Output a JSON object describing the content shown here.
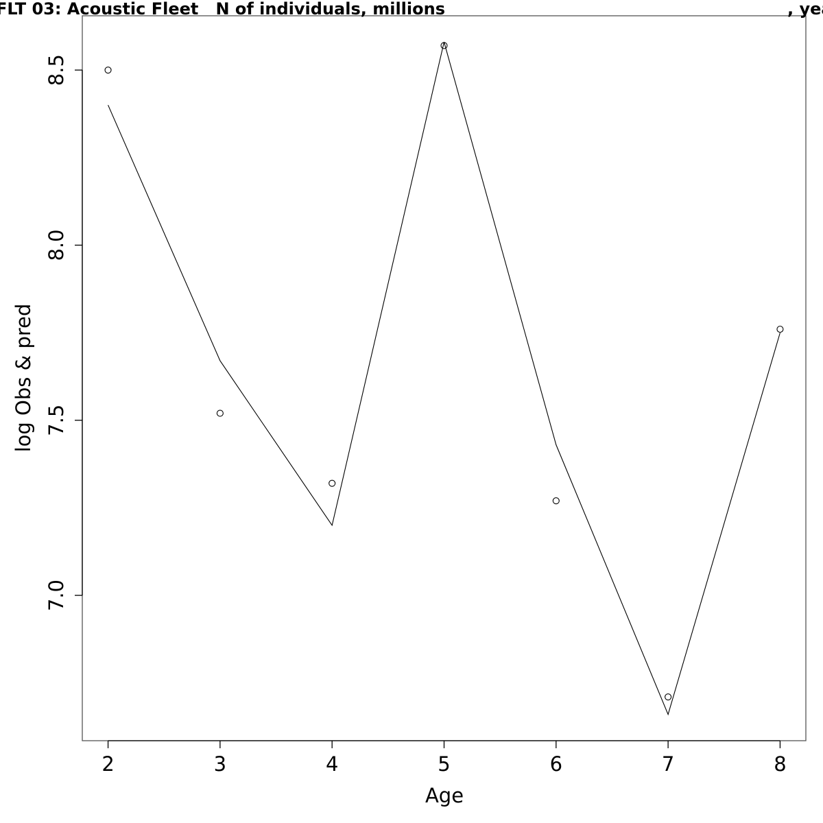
{
  "chart_data": {
    "type": "line",
    "title_left": "FLT 03: Acoustic Fleet   N of individuals, millions",
    "title_right": ", yea",
    "xlabel": "Age",
    "ylabel": "log Obs & pred",
    "xlim": [
      1.77,
      8.23
    ],
    "ylim": [
      6.585,
      8.655
    ],
    "x_ticks": [
      2,
      3,
      4,
      5,
      6,
      7,
      8
    ],
    "y_ticks": [
      7.0,
      7.5,
      8.0,
      8.5
    ],
    "y_tick_labels": [
      "7.0",
      "7.5",
      "8.0",
      "8.5"
    ],
    "grid": false,
    "series": [
      {
        "style": "points",
        "marker": "open-circle",
        "color": "#000000",
        "x": [
          2,
          3,
          4,
          5,
          6,
          7,
          8
        ],
        "y": [
          8.5,
          7.52,
          7.32,
          8.57,
          7.27,
          6.71,
          7.76
        ]
      },
      {
        "style": "line",
        "color": "#000000",
        "x": [
          2,
          3,
          4,
          5,
          6,
          7,
          8
        ],
        "y": [
          8.4,
          7.67,
          7.2,
          8.58,
          7.43,
          6.66,
          7.75
        ]
      }
    ]
  }
}
